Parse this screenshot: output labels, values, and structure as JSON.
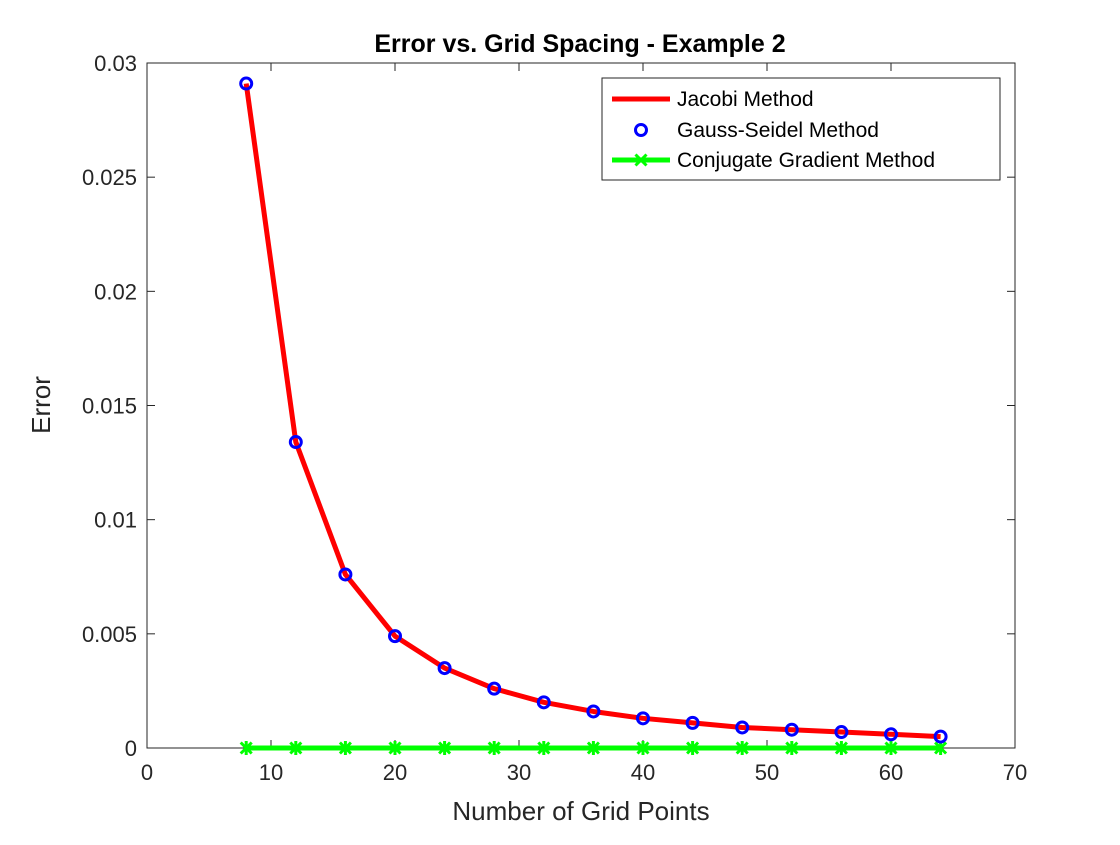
{
  "chart_data": {
    "type": "line",
    "title": "Error vs. Grid Spacing - Example 2",
    "xlabel": "Number of Grid Points",
    "ylabel": "Error",
    "xlim": [
      0,
      70
    ],
    "ylim": [
      0,
      0.03
    ],
    "xticks": [
      0,
      10,
      20,
      30,
      40,
      50,
      60,
      70
    ],
    "xtick_labels": [
      "0",
      "10",
      "20",
      "30",
      "40",
      "50",
      "60",
      "70"
    ],
    "yticks": [
      0,
      0.005,
      0.01,
      0.015,
      0.02,
      0.025,
      0.03
    ],
    "ytick_labels": [
      "0",
      "0.005",
      "0.01",
      "0.015",
      "0.02",
      "0.025",
      "0.03"
    ],
    "grid": false,
    "legend_position": "top-right",
    "x": [
      8,
      12,
      16,
      20,
      24,
      28,
      32,
      36,
      40,
      44,
      48,
      52,
      56,
      60,
      64
    ],
    "series": [
      {
        "name": "Jacobi Method",
        "color": "#ff0000",
        "style": "line",
        "values": [
          0.0291,
          0.0134,
          0.0076,
          0.0049,
          0.0035,
          0.0026,
          0.002,
          0.0016,
          0.0013,
          0.0011,
          0.0009,
          0.0008,
          0.0007,
          0.0006,
          0.0005
        ]
      },
      {
        "name": "Gauss-Seidel Method",
        "color": "#0000ff",
        "style": "markers",
        "values": [
          0.0291,
          0.0134,
          0.0076,
          0.0049,
          0.0035,
          0.0026,
          0.002,
          0.0016,
          0.0013,
          0.0011,
          0.0009,
          0.0008,
          0.0007,
          0.0006,
          0.0005
        ]
      },
      {
        "name": "Conjugate Gradient Method",
        "color": "#00ff00",
        "style": "line-markers",
        "values": [
          0,
          0,
          0,
          0,
          0,
          0,
          0,
          0,
          0,
          0,
          0,
          0,
          0,
          0,
          0
        ]
      }
    ]
  }
}
